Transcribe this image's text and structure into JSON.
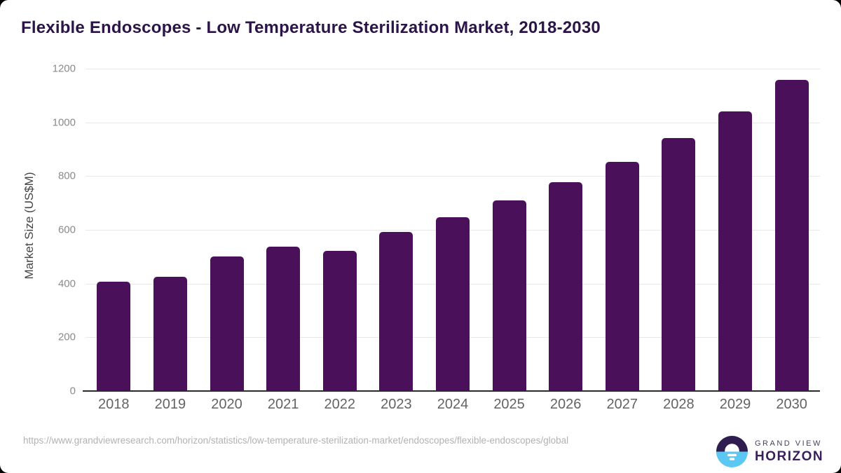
{
  "title": "Flexible Endoscopes - Low Temperature Sterilization Market, 2018-2030",
  "chart_data": {
    "type": "bar",
    "categories": [
      "2018",
      "2019",
      "2020",
      "2021",
      "2022",
      "2023",
      "2024",
      "2025",
      "2026",
      "2027",
      "2028",
      "2029",
      "2030"
    ],
    "values": [
      407,
      426,
      501,
      537,
      522,
      593,
      647,
      710,
      777,
      854,
      941,
      1041,
      1158
    ],
    "title": "Flexible Endoscopes - Low Temperature Sterilization Market, 2018-2030",
    "xlabel": "",
    "ylabel": "Market Size (US$M)",
    "ylim": [
      0,
      1200
    ],
    "ytick_step": 200,
    "yticks": [
      "0",
      "200",
      "400",
      "600",
      "800",
      "1000",
      "1200"
    ],
    "grid": "horizontal-light",
    "legend": "none",
    "bar_color": "#4a115a"
  },
  "colors": {
    "bar": "#4a115a",
    "title_text": "#2b1548",
    "axis_line": "#2b2b2b",
    "gridline": "#e8e8e8",
    "logo_circle_top": "#2e1d4e",
    "logo_circle_bottom": "#5bc7f3",
    "logo_brand_top_text": "#47415f",
    "logo_brand_bottom_text": "#3a1f5d"
  },
  "footer": {
    "source_url": "https://www.grandviewresearch.com/horizon/statistics/low-temperature-sterilization-market/endoscopes/flexible-endoscopes/global",
    "logo": {
      "brand_top": "GRAND VIEW",
      "brand_bottom": "HORIZON"
    }
  }
}
